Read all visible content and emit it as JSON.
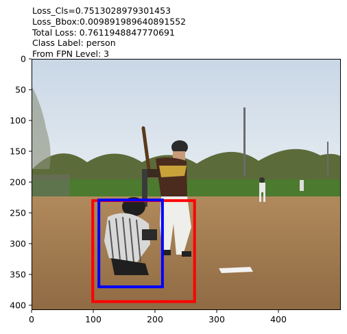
{
  "annotations": {
    "loss_cls": "Loss_Cls=0.7513028979301453",
    "loss_bbox": "Loss_Bbox:0.009891989640891552",
    "total_loss": "Total Loss: 0.7611948847770691",
    "class_label": "Class Label: person",
    "fpn_level": "From FPN Level: 3"
  },
  "axes": {
    "x_ticks": [
      "0",
      "100",
      "200",
      "300",
      "400"
    ],
    "y_ticks": [
      "0",
      "50",
      "100",
      "150",
      "200",
      "250",
      "300",
      "350",
      "400"
    ]
  },
  "boxes": [
    {
      "label": "red-box",
      "color": "#ff0000",
      "x1": 98,
      "y1": 229,
      "x2": 263,
      "y2": 393
    },
    {
      "label": "blue-box",
      "color": "#0000ff",
      "x1": 108,
      "y1": 228,
      "x2": 211,
      "y2": 369
    }
  ],
  "colors": {
    "red": "#ff0000",
    "blue": "#0000ff"
  }
}
